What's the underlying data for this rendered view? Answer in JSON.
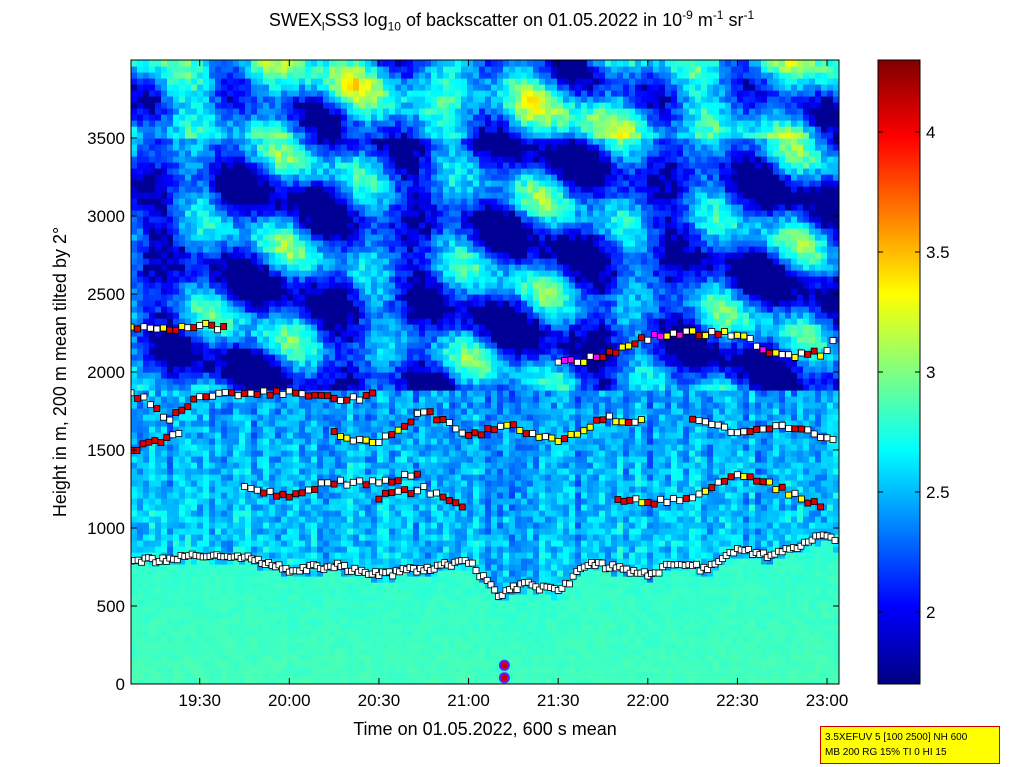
{
  "title": {
    "part1": "SWEX",
    "sub1": "l",
    "part2": "SS3 log",
    "sub2": "10",
    "part3": " of backscatter on 01.05.2022 in 10",
    "sup1": "-9",
    "part4": " m",
    "sup2": "-1",
    "part5": " sr",
    "sup3": "-1"
  },
  "info": {
    "line1": "3.5XEFUV 5 [100 2500] NH 600",
    "line2": "MB 200 RG 15% TI 0 HI 15"
  },
  "colors": {
    "colormap": [
      "#000080",
      "#0000ff",
      "#0080ff",
      "#00ffff",
      "#80ff80",
      "#ffff00",
      "#ff8000",
      "#ff0000",
      "#800000"
    ],
    "marker_red": "#dd0000",
    "marker_yellow": "#ffff00",
    "marker_white": "#ffffff",
    "marker_magenta": "#ff00ff",
    "marker_edge": "#000000",
    "bottom_marker_fill": "#cc0000",
    "bottom_marker_edge": "#6020ff"
  },
  "chart_data": {
    "type": "heatmap",
    "xlabel": "Time on 01.05.2022, 600 s mean",
    "ylabel": "Height in m, 200 m mean tilted by 2°",
    "xlim": [
      "19:07",
      "23:04"
    ],
    "ylim": [
      0,
      4000
    ],
    "xticks": [
      "19:30",
      "20:00",
      "20:30",
      "21:00",
      "21:30",
      "22:00",
      "22:30",
      "23:00"
    ],
    "yticks": [
      "0",
      "500",
      "1000",
      "1500",
      "2000",
      "2500",
      "3000",
      "3500"
    ],
    "colorbar": {
      "range": [
        1.7,
        4.3
      ],
      "ticks": [
        "2",
        "2.5",
        "3",
        "3.5",
        "4"
      ]
    },
    "cloud_base_layer": {
      "name": "lowest detected layer (white squares)",
      "times": [
        "19:07",
        "19:20",
        "19:30",
        "19:45",
        "20:00",
        "20:15",
        "20:30",
        "20:45",
        "21:00",
        "21:05",
        "21:10",
        "21:20",
        "21:30",
        "21:40",
        "22:00",
        "22:10",
        "22:20",
        "22:30",
        "22:40",
        "22:50",
        "23:00",
        "23:04"
      ],
      "heights": [
        800,
        790,
        830,
        820,
        730,
        760,
        700,
        740,
        780,
        680,
        580,
        640,
        590,
        780,
        700,
        780,
        730,
        870,
        820,
        880,
        960,
        880
      ]
    },
    "upper_layers": [
      {
        "times": [
          "19:07",
          "19:20",
          "19:30",
          "19:40"
        ],
        "heights": [
          2300,
          2260,
          2300,
          2280
        ]
      },
      {
        "times": [
          "19:07",
          "19:20",
          "19:30",
          "19:45",
          "20:00",
          "20:15",
          "20:30"
        ],
        "heights": [
          1880,
          1700,
          1860,
          1850,
          1880,
          1820,
          1850
        ]
      },
      {
        "times": [
          "19:07",
          "19:15",
          "19:25"
        ],
        "heights": [
          1500,
          1560,
          1600
        ]
      },
      {
        "times": [
          "19:45",
          "20:00",
          "20:15",
          "20:30",
          "20:45"
        ],
        "heights": [
          1250,
          1200,
          1300,
          1280,
          1380
        ]
      },
      {
        "times": [
          "20:30",
          "20:45",
          "21:00"
        ],
        "heights": [
          1200,
          1250,
          1100
        ]
      },
      {
        "times": [
          "20:15",
          "20:30",
          "20:45",
          "21:00",
          "21:15",
          "21:30",
          "21:45",
          "22:00"
        ],
        "heights": [
          1600,
          1540,
          1750,
          1600,
          1650,
          1550,
          1700,
          1690
        ]
      },
      {
        "times": [
          "21:30",
          "21:45",
          "22:00",
          "22:15",
          "22:30",
          "22:45",
          "23:00",
          "23:04"
        ],
        "heights": [
          2050,
          2100,
          2220,
          2250,
          2240,
          2100,
          2120,
          2250
        ]
      },
      {
        "times": [
          "22:15",
          "22:30",
          "22:45",
          "23:00",
          "23:04"
        ],
        "heights": [
          1700,
          1600,
          1650,
          1580,
          1560
        ]
      },
      {
        "times": [
          "21:50",
          "22:00",
          "22:15",
          "22:30",
          "22:45",
          "23:00"
        ],
        "heights": [
          1200,
          1150,
          1210,
          1350,
          1250,
          1110
        ]
      }
    ],
    "bottom_markers": [
      {
        "time": "21:12",
        "height": 40
      },
      {
        "time": "21:12",
        "height": 120
      }
    ]
  }
}
